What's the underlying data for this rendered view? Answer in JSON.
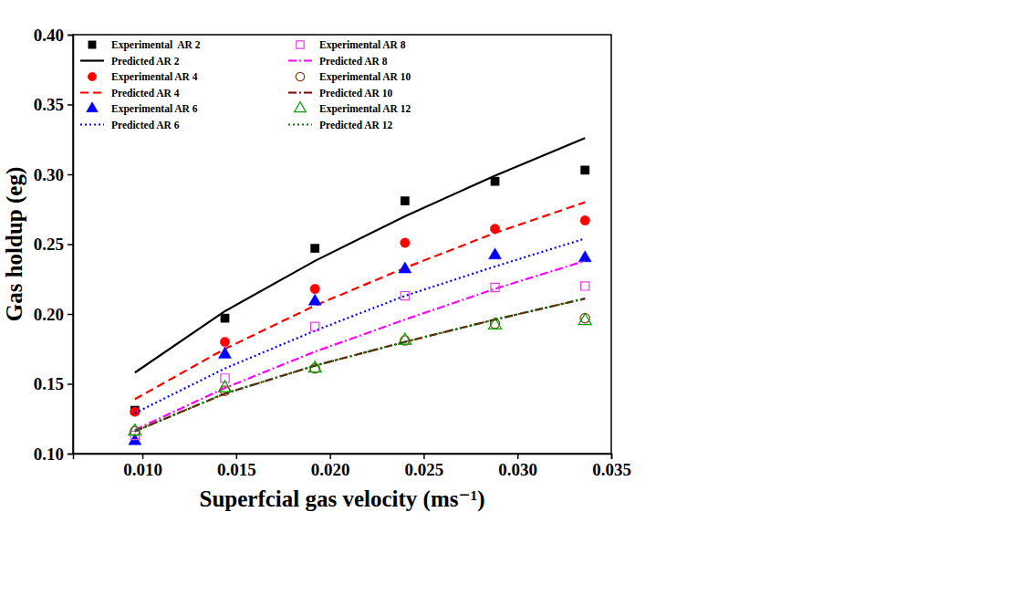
{
  "chart_data": {
    "type": "line",
    "x_label": "Superfcial gas velocity (ms⁻¹)",
    "y_label": "Gas holdup (eg)",
    "x": [
      0.0096,
      0.0144,
      0.0192,
      0.024,
      0.0288,
      0.0336
    ],
    "xlim": [
      0.0063,
      0.035
    ],
    "xticks": [
      {
        "value": 0.01,
        "label": "0.010"
      },
      {
        "value": 0.015,
        "label": "0.015"
      },
      {
        "value": 0.02,
        "label": "0.020"
      },
      {
        "value": 0.025,
        "label": "0.025"
      },
      {
        "value": 0.03,
        "label": "0.030"
      },
      {
        "value": 0.035,
        "label": "0.035"
      }
    ],
    "ylim": [
      0.1,
      0.4
    ],
    "yticks": [
      {
        "value": 0.1,
        "label": "0.10"
      },
      {
        "value": 0.15,
        "label": "0.15"
      },
      {
        "value": 0.2,
        "label": "0.20"
      },
      {
        "value": 0.25,
        "label": "0.25"
      },
      {
        "value": 0.3,
        "label": "0.30"
      },
      {
        "value": 0.35,
        "label": "0.35"
      },
      {
        "value": 0.4,
        "label": "0.40"
      }
    ],
    "grid": false,
    "legend": "upper left",
    "series": [
      {
        "name": "Experimental  AR 2",
        "type": "scatter",
        "marker": "square",
        "color": "#000000",
        "values": [
          0.131,
          0.197,
          0.247,
          0.281,
          0.295,
          0.303
        ]
      },
      {
        "name": "Predicted AR 2",
        "type": "line",
        "line_style": "solid",
        "color": "#000000",
        "values": [
          0.158,
          0.202,
          0.238,
          0.27,
          0.299,
          0.326
        ]
      },
      {
        "name": "Experimental AR 4",
        "type": "scatter",
        "marker": "circle",
        "color": "#ff0000",
        "values": [
          0.13,
          0.18,
          0.218,
          0.251,
          0.261,
          0.267
        ]
      },
      {
        "name": "Predicted AR 4",
        "type": "line",
        "line_style": "dashed",
        "color": "#ff0000",
        "values": [
          0.139,
          0.175,
          0.206,
          0.233,
          0.258,
          0.28
        ]
      },
      {
        "name": "Experimental AR 6",
        "type": "scatter",
        "marker": "triangle",
        "color": "#0000ff",
        "values": [
          0.109,
          0.171,
          0.209,
          0.232,
          0.242,
          0.24
        ]
      },
      {
        "name": "Predicted AR 6",
        "type": "line",
        "line_style": "dotted",
        "color": "#0000ff",
        "values": [
          0.129,
          0.161,
          0.188,
          0.213,
          0.234,
          0.254
        ]
      },
      {
        "name": "Experimental AR 8",
        "type": "scatter",
        "marker": "square-open",
        "color": "#e040e0",
        "values": [
          0.113,
          0.154,
          0.191,
          0.213,
          0.219,
          0.22
        ]
      },
      {
        "name": "Predicted AR 8",
        "type": "line",
        "line_style": "dashdot",
        "color": "#ff00ff",
        "values": [
          0.117,
          0.147,
          0.173,
          0.196,
          0.218,
          0.238
        ]
      },
      {
        "name": "Experimental AR 10",
        "type": "scatter",
        "marker": "circle-open",
        "color": "#8b3a1a",
        "values": [
          0.116,
          0.145,
          0.161,
          0.181,
          0.193,
          0.197
        ]
      },
      {
        "name": "Predicted AR 10",
        "type": "line",
        "line_style": "dashdot",
        "color": "#800000",
        "values": [
          0.116,
          0.143,
          0.163,
          0.18,
          0.196,
          0.211
        ]
      },
      {
        "name": "Experimental AR 12",
        "type": "scatter",
        "marker": "triangle-open",
        "color": "#00a000",
        "values": [
          0.116,
          0.147,
          0.161,
          0.181,
          0.192,
          0.195
        ]
      },
      {
        "name": "Predicted AR 12",
        "type": "line",
        "line_style": "dotted",
        "color": "#008000",
        "values": [
          0.116,
          0.143,
          0.163,
          0.18,
          0.196,
          0.211
        ]
      }
    ]
  }
}
